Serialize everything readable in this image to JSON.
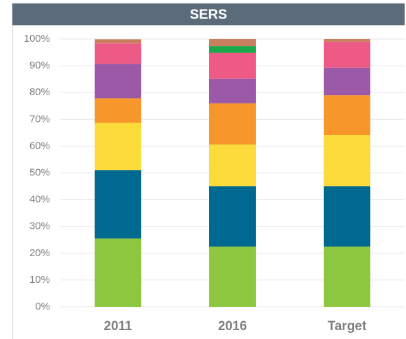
{
  "chart_data": {
    "type": "stacked_bar",
    "title": "SERS",
    "categories": [
      "2011",
      "2016",
      "Target"
    ],
    "series": [
      {
        "color": "#8dc63f",
        "values": [
          25.5,
          22.5,
          22.5
        ]
      },
      {
        "color": "#006990",
        "values": [
          25.6,
          22.5,
          22.5
        ]
      },
      {
        "color": "#fddb3a",
        "values": [
          17.6,
          15.6,
          19.2
        ]
      },
      {
        "color": "#f7962a",
        "values": [
          9.2,
          15.4,
          14.8
        ]
      },
      {
        "color": "#9b59a8",
        "values": [
          12.8,
          9.2,
          10.3
        ]
      },
      {
        "color": "#ee5a86",
        "values": [
          7.7,
          9.7,
          9.7
        ]
      },
      {
        "color": "#1aa84a",
        "values": [
          0,
          2.5,
          0
        ]
      },
      {
        "color": "#c8805e",
        "values": [
          1.5,
          2.6,
          1
        ]
      }
    ],
    "ylim": [
      0,
      100
    ],
    "yticks": [
      {
        "value": 0,
        "label": "0%"
      },
      {
        "value": 10,
        "label": "10%"
      },
      {
        "value": 20,
        "label": "20%"
      },
      {
        "value": 30,
        "label": "30%"
      },
      {
        "value": 40,
        "label": "40%"
      },
      {
        "value": 50,
        "label": "50%"
      },
      {
        "value": 60,
        "label": "60%"
      },
      {
        "value": 70,
        "label": "70%"
      },
      {
        "value": 80,
        "label": "80%"
      },
      {
        "value": 90,
        "label": "90%"
      },
      {
        "value": 100,
        "label": "100%"
      }
    ],
    "grid": true
  }
}
